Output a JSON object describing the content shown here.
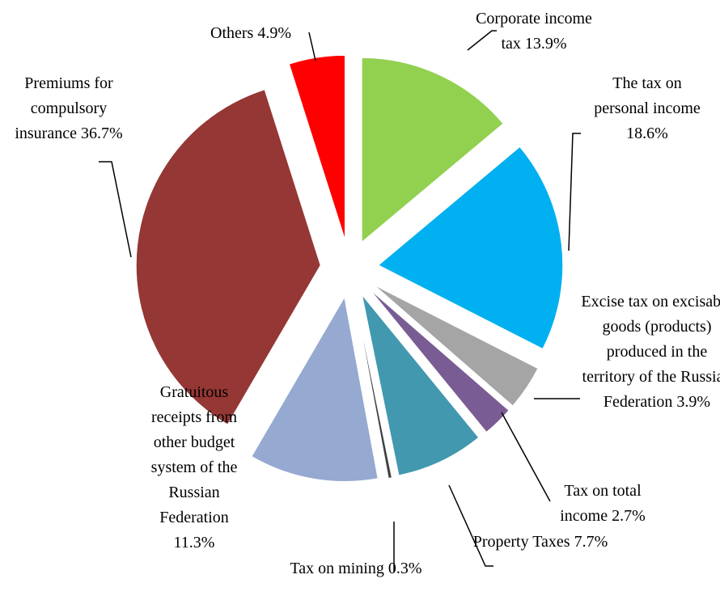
{
  "chart_data": {
    "type": "pie",
    "categories": [
      "Corporate income tax",
      "The tax on personal income",
      "Excise tax on excisable goods (products) produced in the territory of the Russian Federation",
      "Tax on total income",
      "Property Taxes",
      "Tax on mining",
      "Gratuitous receipts from other budget system of the Russian Federation",
      "Premiums for compulsory insurance",
      "Others"
    ],
    "values": [
      13.9,
      18.6,
      3.9,
      2.7,
      7.7,
      0.3,
      11.3,
      36.7,
      4.9
    ],
    "value_labels": [
      "13.9%",
      "18.6%",
      "3.9%",
      "2.7%",
      "7.7%",
      "0.3%",
      "11.3%",
      "36.7%",
      "4.9%"
    ],
    "colors": [
      "#92d050",
      "#00b0f0",
      "#a5a5a5",
      "#7a5c94",
      "#4198af",
      "#404040",
      "#95a9d1",
      "#953735",
      "#ff0000"
    ]
  }
}
